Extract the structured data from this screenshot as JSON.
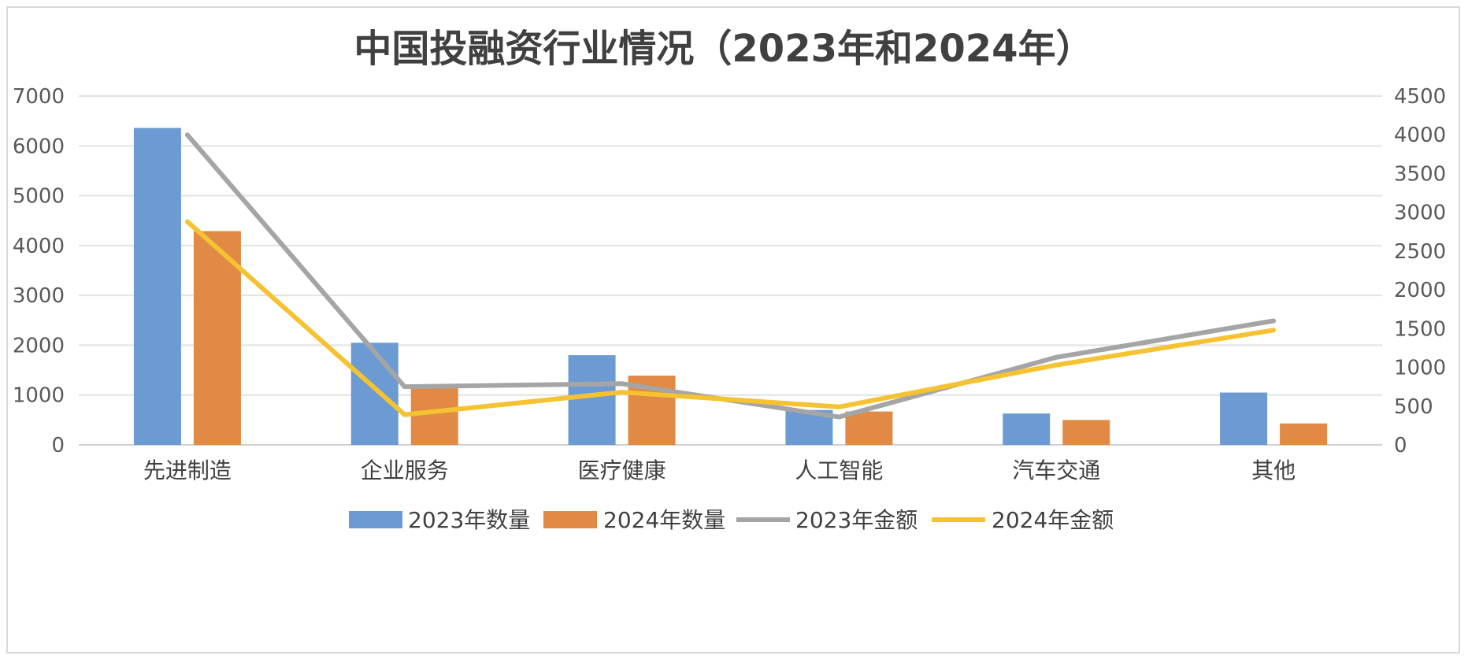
{
  "chart_data": {
    "type": "bar",
    "title": "中国投融资行业情况（2023年和2024年）",
    "categories": [
      "先进制造",
      "企业服务",
      "医疗健康",
      "人工智能",
      "汽车交通",
      "其他"
    ],
    "series": [
      {
        "name": "2023年数量",
        "type": "bar",
        "axis": "left",
        "color": "#6b9bd2",
        "values": [
          6360,
          2050,
          1800,
          700,
          630,
          1050
        ]
      },
      {
        "name": "2024年数量",
        "type": "bar",
        "axis": "left",
        "color": "#e08a45",
        "values": [
          4290,
          1150,
          1390,
          670,
          500,
          430
        ]
      },
      {
        "name": "2023年金额",
        "type": "line",
        "axis": "right",
        "color": "#a5a5a5",
        "values": [
          4000,
          750,
          790,
          360,
          1130,
          1600
        ]
      },
      {
        "name": "2024年金额",
        "type": "line",
        "axis": "right",
        "color": "#f5c232",
        "values": [
          2880,
          390,
          680,
          490,
          1030,
          1480
        ]
      }
    ],
    "y_left": {
      "min": 0,
      "max": 7000,
      "ticks": [
        "0",
        "1000",
        "2000",
        "3000",
        "4000",
        "5000",
        "6000",
        "7000"
      ]
    },
    "y_right": {
      "min": 0,
      "max": 4500,
      "ticks": [
        "0",
        "500",
        "1000",
        "1500",
        "2000",
        "2500",
        "3000",
        "3500",
        "4000",
        "4500"
      ]
    },
    "grid": true,
    "legend_position": "bottom"
  }
}
